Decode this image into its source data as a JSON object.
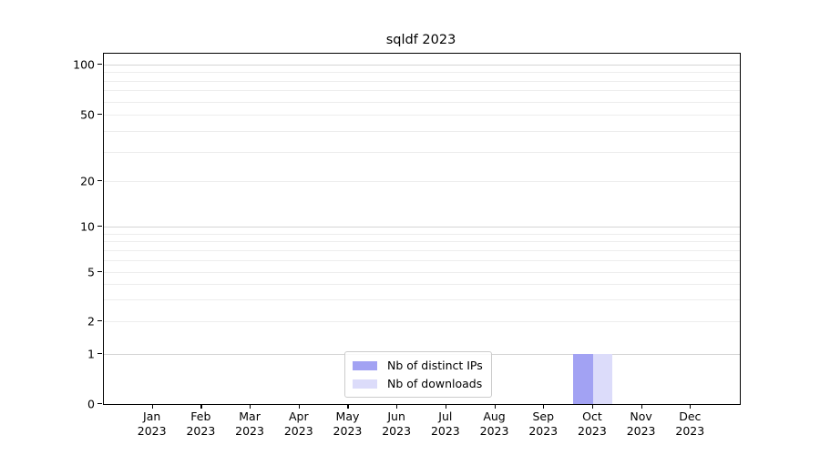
{
  "chart_data": {
    "type": "bar",
    "title": "sqldf 2023",
    "categories": [
      "Jan",
      "Feb",
      "Mar",
      "Apr",
      "May",
      "Jun",
      "Jul",
      "Aug",
      "Sep",
      "Oct",
      "Nov",
      "Dec"
    ],
    "category_year": "2023",
    "series": [
      {
        "name": "Nb of distinct IPs",
        "color": "#a2a2f3",
        "values": [
          0,
          0,
          0,
          0,
          0,
          0,
          0,
          0,
          0,
          1,
          0,
          0
        ]
      },
      {
        "name": "Nb of downloads",
        "color": "#dcdcfa",
        "values": [
          0,
          0,
          0,
          0,
          0,
          0,
          0,
          0,
          0,
          1,
          0,
          0
        ]
      }
    ],
    "y_axis": {
      "scale": "symlog",
      "tick_labels": [
        "0",
        "1",
        "2",
        "5",
        "10",
        "20",
        "50",
        "100"
      ],
      "tick_values": [
        0,
        1,
        2,
        5,
        10,
        20,
        50,
        100
      ],
      "ylim": [
        0,
        100
      ]
    },
    "grid": "on",
    "legend_position": "lower-center"
  },
  "colors": {
    "grid_major": "#d4d4d4",
    "grid_minor": "#ededed",
    "spine": "#000000",
    "legend_border": "#cccccc"
  }
}
